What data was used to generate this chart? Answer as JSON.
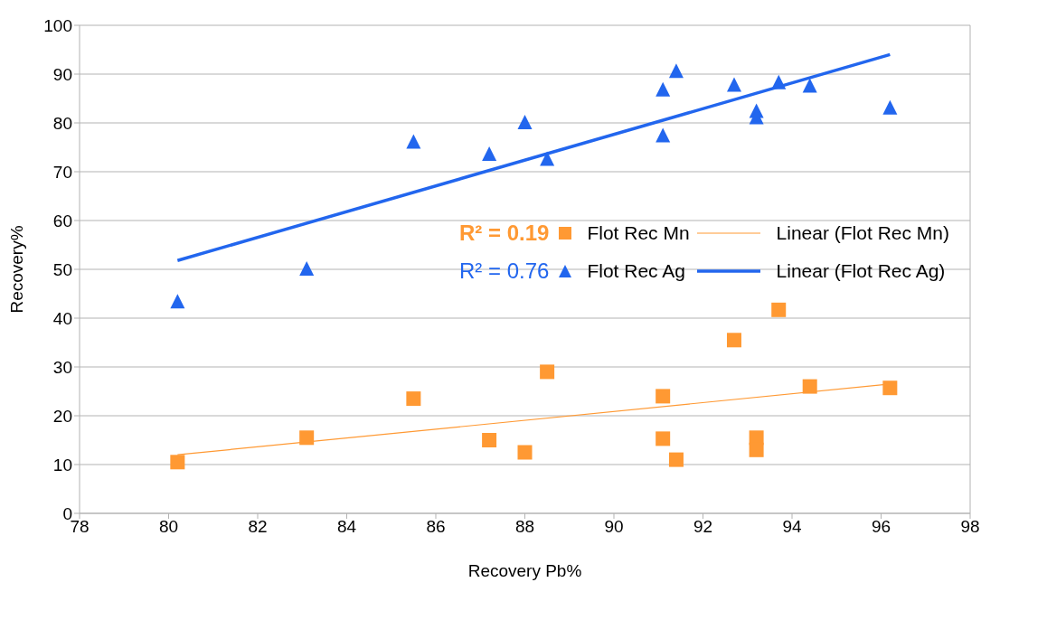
{
  "chart_data": {
    "type": "scatter",
    "xlabel": "Recovery Pb%",
    "ylabel": "Recovery%",
    "xlim": [
      78,
      98
    ],
    "xticks": [
      78,
      80,
      82,
      84,
      86,
      88,
      90,
      92,
      94,
      96,
      98
    ],
    "ylim": [
      0,
      100
    ],
    "yticks": [
      0,
      10,
      20,
      30,
      40,
      50,
      60,
      70,
      80,
      90,
      100
    ],
    "grid": "y",
    "legend": "right",
    "annotations": [
      "R² = 0.19",
      "R² = 0.76"
    ],
    "series": [
      {
        "name": "Flot Rec Mn",
        "marker": "square",
        "color": "#ff9933",
        "x": [
          80.2,
          83.1,
          85.5,
          87.2,
          88.0,
          88.5,
          91.1,
          91.1,
          91.4,
          92.7,
          93.2,
          93.2,
          93.7,
          94.4,
          96.2
        ],
        "values": [
          10.5,
          15.5,
          23.5,
          15,
          12.5,
          29,
          24,
          15.3,
          11,
          35.5,
          15.5,
          13,
          41.7,
          26,
          25.7
        ]
      },
      {
        "name": "Linear (Flot Rec Mn)",
        "type": "line",
        "marker": "none",
        "color": "#ff9933",
        "x": [
          80.2,
          96.2
        ],
        "values": [
          12,
          26.5
        ]
      },
      {
        "name": "Flot Rec Ag",
        "marker": "triangle",
        "color": "#2266ee",
        "x": [
          80.2,
          83.1,
          85.5,
          87.2,
          88.0,
          88.5,
          91.1,
          91.1,
          91.4,
          92.7,
          93.2,
          93.2,
          93.7,
          94.4,
          96.2
        ],
        "values": [
          43.3,
          50,
          76,
          73.5,
          80,
          72.5,
          86.7,
          77.3,
          90.5,
          87.7,
          82.3,
          81,
          88.2,
          87.5,
          83
        ]
      },
      {
        "name": "Linear (Flot Rec Ag)",
        "type": "line",
        "marker": "none",
        "color": "#2266ee",
        "x": [
          80.2,
          96.2
        ],
        "values": [
          51.8,
          94
        ]
      }
    ]
  }
}
